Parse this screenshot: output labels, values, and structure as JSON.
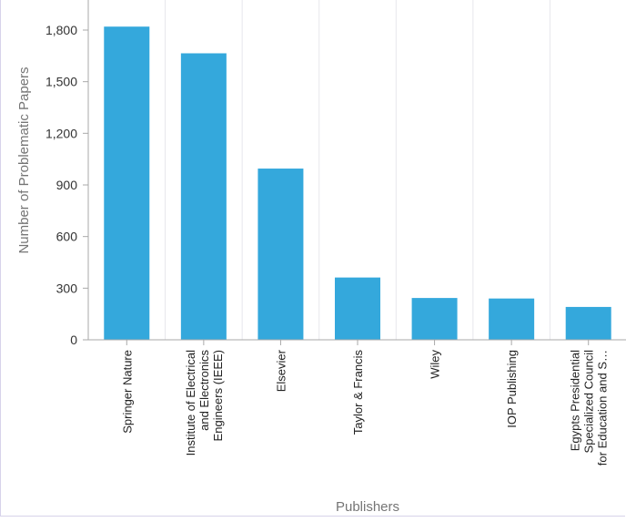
{
  "chart_data": {
    "type": "bar",
    "xlabel": "Publishers",
    "ylabel": "Number of Problematic Papers",
    "categories": [
      [
        "Springer Nature"
      ],
      [
        "Institute of Electrical",
        "and Electronics",
        "Engineers (IEEE)"
      ],
      [
        "Elsevier"
      ],
      [
        "Taylor & Francis"
      ],
      [
        "Wiley"
      ],
      [
        "IOP Publishing"
      ],
      [
        "Egypts Presidential",
        "Specialized Council",
        "for Education and S…"
      ]
    ],
    "values": [
      1820,
      1665,
      995,
      362,
      243,
      240,
      191
    ],
    "ylim": [
      0,
      1900
    ],
    "yticks": [
      0,
      300,
      600,
      900,
      1200,
      1500,
      1800
    ],
    "ytick_labels": [
      "0",
      "300",
      "600",
      "900",
      "1,200",
      "1,500",
      "1,800"
    ],
    "grid": "vertical",
    "bar_color": "#34a8dc"
  }
}
